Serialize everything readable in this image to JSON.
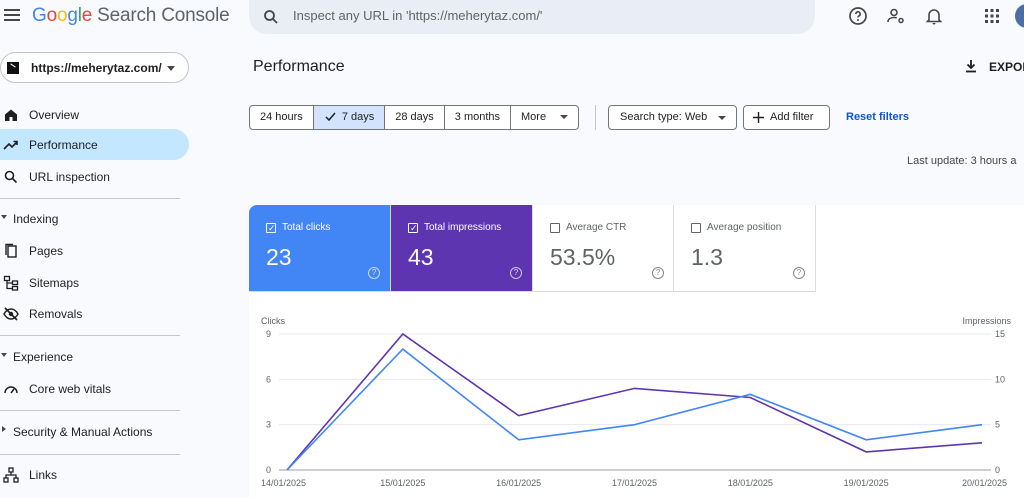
{
  "app": {
    "logo_letters": [
      "G",
      "o",
      "o",
      "g",
      "l",
      "e"
    ],
    "product": "Search Console"
  },
  "search": {
    "placeholder": "Inspect any URL in 'https://meherytaz.com/'"
  },
  "header_icons": [
    "help-icon",
    "manage-users-icon",
    "notifications-icon",
    "apps-grid-icon",
    "account-avatar"
  ],
  "sidebar": {
    "property": "https://meherytaz.com/",
    "items": [
      {
        "label": "Overview",
        "icon": "home-icon"
      },
      {
        "label": "Performance",
        "icon": "trending-up-icon",
        "active": true
      },
      {
        "label": "URL inspection",
        "icon": "search-icon"
      }
    ],
    "sections": {
      "indexing": {
        "label": "Indexing",
        "items": [
          {
            "label": "Pages",
            "icon": "pages-icon"
          },
          {
            "label": "Sitemaps",
            "icon": "sitemap-icon"
          },
          {
            "label": "Removals",
            "icon": "visibility-off-icon"
          }
        ]
      },
      "experience": {
        "label": "Experience",
        "items": [
          {
            "label": "Core web vitals",
            "icon": "speed-gauge-icon"
          }
        ]
      },
      "security": {
        "label": "Security & Manual Actions"
      },
      "links": {
        "label": "Links",
        "icon": "links-icon"
      }
    }
  },
  "main": {
    "title": "Performance",
    "export_label": "EXPOR",
    "date_ranges": [
      "24 hours",
      "7 days",
      "28 days",
      "3 months",
      "More"
    ],
    "date_selected": "7 days",
    "search_type": "Search type: Web",
    "add_filter": "Add filter",
    "reset": "Reset filters",
    "last_update": "Last update: 3 hours a"
  },
  "metrics": [
    {
      "label": "Total clicks",
      "value": "23",
      "checked": true,
      "color": "#4285f4"
    },
    {
      "label": "Total impressions",
      "value": "43",
      "checked": true,
      "color": "#5e35b1"
    },
    {
      "label": "Average CTR",
      "value": "53.5%",
      "checked": false
    },
    {
      "label": "Average position",
      "value": "1.3",
      "checked": false
    }
  ],
  "chart_data": {
    "type": "line",
    "left_axis_label": "Clicks",
    "right_axis_label": "Impressions",
    "x": [
      "14/01/2025",
      "15/01/2025",
      "16/01/2025",
      "17/01/2025",
      "18/01/2025",
      "19/01/2025",
      "20/01/2025"
    ],
    "left_ticks": [
      "9",
      "6",
      "3",
      "0"
    ],
    "right_ticks": [
      "15",
      "10",
      "5",
      "0"
    ],
    "left_ylim": [
      0,
      9
    ],
    "right_ylim": [
      0,
      15
    ],
    "series": [
      {
        "name": "Clicks",
        "axis": "left",
        "color": "#4285f4",
        "values": [
          0,
          8,
          2,
          3,
          5,
          2,
          3
        ]
      },
      {
        "name": "Impressions",
        "axis": "right",
        "color": "#5e35b1",
        "values": [
          0,
          15,
          6,
          9,
          8,
          2,
          3
        ]
      }
    ]
  }
}
